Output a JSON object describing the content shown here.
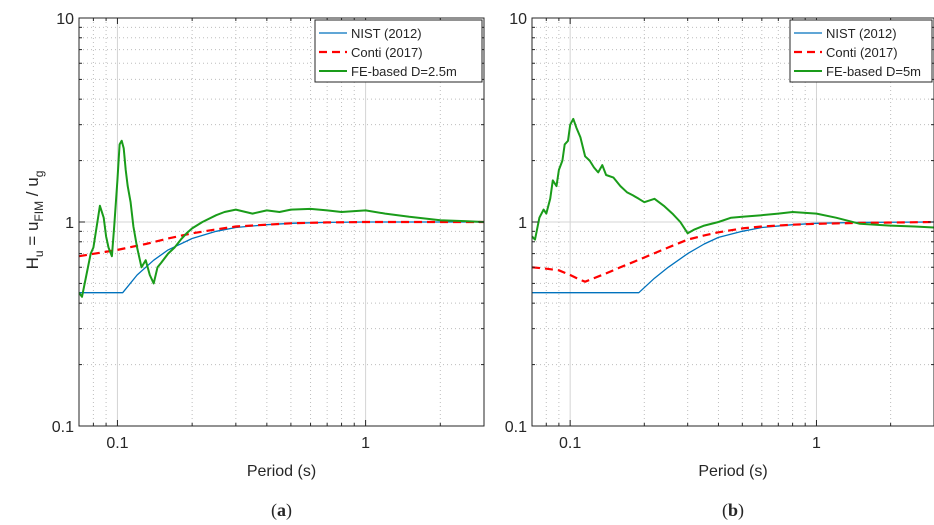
{
  "chart_data": [
    {
      "type": "line",
      "panel_label": "(a)",
      "xlabel": "Period (s)",
      "ylabel": "H_u = u_FIM / u_g",
      "xscale": "log",
      "yscale": "log",
      "xlim": [
        0.07,
        3.0
      ],
      "ylim": [
        0.1,
        10
      ],
      "x_tick_labels": [
        "0.1",
        "1"
      ],
      "y_tick_labels": [
        "0.1",
        "1",
        "10"
      ],
      "grid": true,
      "legend_position": "top-right",
      "series": [
        {
          "name": "NIST (2012)",
          "color": "#0072bd",
          "style": "solid",
          "points": [
            [
              0.07,
              0.45
            ],
            [
              0.105,
              0.45
            ],
            [
              0.12,
              0.55
            ],
            [
              0.14,
              0.65
            ],
            [
              0.16,
              0.73
            ],
            [
              0.2,
              0.83
            ],
            [
              0.25,
              0.9
            ],
            [
              0.3,
              0.94
            ],
            [
              0.4,
              0.97
            ],
            [
              0.5,
              0.985
            ],
            [
              0.7,
              0.995
            ],
            [
              1.0,
              1.0
            ],
            [
              3.0,
              1.0
            ]
          ]
        },
        {
          "name": "Conti (2017)",
          "color": "#ff0000",
          "style": "dashed",
          "points": [
            [
              0.07,
              0.68
            ],
            [
              0.1,
              0.73
            ],
            [
              0.13,
              0.78
            ],
            [
              0.16,
              0.83
            ],
            [
              0.2,
              0.88
            ],
            [
              0.25,
              0.92
            ],
            [
              0.3,
              0.95
            ],
            [
              0.4,
              0.97
            ],
            [
              0.5,
              0.985
            ],
            [
              0.7,
              0.995
            ],
            [
              1.0,
              1.0
            ],
            [
              3.0,
              1.0
            ]
          ]
        },
        {
          "name": "FE-based D=2.5m",
          "color": "#1a9c1a",
          "style": "solid",
          "points": [
            [
              0.07,
              0.45
            ],
            [
              0.072,
              0.43
            ],
            [
              0.075,
              0.55
            ],
            [
              0.078,
              0.7
            ],
            [
              0.08,
              0.75
            ],
            [
              0.083,
              1.0
            ],
            [
              0.085,
              1.2
            ],
            [
              0.088,
              1.05
            ],
            [
              0.09,
              0.85
            ],
            [
              0.092,
              0.75
            ],
            [
              0.095,
              0.68
            ],
            [
              0.097,
              0.95
            ],
            [
              0.1,
              1.6
            ],
            [
              0.102,
              2.4
            ],
            [
              0.104,
              2.5
            ],
            [
              0.106,
              2.3
            ],
            [
              0.108,
              1.8
            ],
            [
              0.11,
              1.5
            ],
            [
              0.113,
              1.25
            ],
            [
              0.116,
              0.95
            ],
            [
              0.12,
              0.75
            ],
            [
              0.125,
              0.6
            ],
            [
              0.13,
              0.65
            ],
            [
              0.135,
              0.55
            ],
            [
              0.14,
              0.5
            ],
            [
              0.145,
              0.6
            ],
            [
              0.15,
              0.63
            ],
            [
              0.16,
              0.7
            ],
            [
              0.17,
              0.75
            ],
            [
              0.18,
              0.82
            ],
            [
              0.19,
              0.88
            ],
            [
              0.2,
              0.93
            ],
            [
              0.22,
              1.0
            ],
            [
              0.25,
              1.08
            ],
            [
              0.27,
              1.12
            ],
            [
              0.3,
              1.15
            ],
            [
              0.35,
              1.1
            ],
            [
              0.4,
              1.14
            ],
            [
              0.45,
              1.12
            ],
            [
              0.5,
              1.15
            ],
            [
              0.6,
              1.16
            ],
            [
              0.7,
              1.14
            ],
            [
              0.8,
              1.12
            ],
            [
              1.0,
              1.14
            ],
            [
              1.2,
              1.1
            ],
            [
              1.5,
              1.06
            ],
            [
              2.0,
              1.02
            ],
            [
              2.5,
              1.01
            ],
            [
              3.0,
              1.0
            ]
          ]
        }
      ]
    },
    {
      "type": "line",
      "panel_label": "(b)",
      "xlabel": "Period (s)",
      "ylabel": "",
      "xscale": "log",
      "yscale": "log",
      "xlim": [
        0.07,
        3.0
      ],
      "ylim": [
        0.1,
        10
      ],
      "x_tick_labels": [
        "0.1",
        "1"
      ],
      "y_tick_labels": [
        "0.1",
        "1",
        "10"
      ],
      "grid": true,
      "legend_position": "top-right",
      "series": [
        {
          "name": "NIST (2012)",
          "color": "#0072bd",
          "style": "solid",
          "points": [
            [
              0.07,
              0.45
            ],
            [
              0.19,
              0.45
            ],
            [
              0.22,
              0.53
            ],
            [
              0.25,
              0.6
            ],
            [
              0.3,
              0.7
            ],
            [
              0.35,
              0.78
            ],
            [
              0.4,
              0.84
            ],
            [
              0.5,
              0.9
            ],
            [
              0.6,
              0.94
            ],
            [
              0.8,
              0.97
            ],
            [
              1.0,
              0.985
            ],
            [
              1.5,
              0.995
            ],
            [
              3.0,
              1.0
            ]
          ]
        },
        {
          "name": "Conti (2017)",
          "color": "#ff0000",
          "style": "dashed",
          "points": [
            [
              0.07,
              0.6
            ],
            [
              0.08,
              0.59
            ],
            [
              0.09,
              0.58
            ],
            [
              0.1,
              0.55
            ],
            [
              0.11,
              0.52
            ],
            [
              0.115,
              0.51
            ],
            [
              0.12,
              0.52
            ],
            [
              0.14,
              0.56
            ],
            [
              0.16,
              0.6
            ],
            [
              0.2,
              0.67
            ],
            [
              0.25,
              0.75
            ],
            [
              0.3,
              0.82
            ],
            [
              0.35,
              0.86
            ],
            [
              0.4,
              0.89
            ],
            [
              0.5,
              0.93
            ],
            [
              0.6,
              0.95
            ],
            [
              0.8,
              0.97
            ],
            [
              1.0,
              0.98
            ],
            [
              1.5,
              0.99
            ],
            [
              3.0,
              1.0
            ]
          ]
        },
        {
          "name": "FE-based D=5m",
          "color": "#1a9c1a",
          "style": "solid",
          "points": [
            [
              0.07,
              0.85
            ],
            [
              0.072,
              0.82
            ],
            [
              0.075,
              1.05
            ],
            [
              0.078,
              1.15
            ],
            [
              0.08,
              1.1
            ],
            [
              0.083,
              1.3
            ],
            [
              0.085,
              1.6
            ],
            [
              0.088,
              1.5
            ],
            [
              0.09,
              1.8
            ],
            [
              0.093,
              2.0
            ],
            [
              0.095,
              2.4
            ],
            [
              0.098,
              2.5
            ],
            [
              0.1,
              3.0
            ],
            [
              0.103,
              3.2
            ],
            [
              0.106,
              2.9
            ],
            [
              0.11,
              2.6
            ],
            [
              0.115,
              2.1
            ],
            [
              0.12,
              2.0
            ],
            [
              0.125,
              1.85
            ],
            [
              0.13,
              1.75
            ],
            [
              0.135,
              1.9
            ],
            [
              0.14,
              1.7
            ],
            [
              0.15,
              1.65
            ],
            [
              0.16,
              1.5
            ],
            [
              0.17,
              1.4
            ],
            [
              0.18,
              1.35
            ],
            [
              0.19,
              1.3
            ],
            [
              0.2,
              1.25
            ],
            [
              0.22,
              1.3
            ],
            [
              0.24,
              1.2
            ],
            [
              0.26,
              1.1
            ],
            [
              0.28,
              1.0
            ],
            [
              0.3,
              0.88
            ],
            [
              0.32,
              0.92
            ],
            [
              0.35,
              0.96
            ],
            [
              0.4,
              1.0
            ],
            [
              0.45,
              1.05
            ],
            [
              0.5,
              1.06
            ],
            [
              0.6,
              1.08
            ],
            [
              0.7,
              1.1
            ],
            [
              0.8,
              1.12
            ],
            [
              1.0,
              1.1
            ],
            [
              1.2,
              1.05
            ],
            [
              1.5,
              0.98
            ],
            [
              2.0,
              0.96
            ],
            [
              2.5,
              0.95
            ],
            [
              3.0,
              0.94
            ]
          ]
        }
      ]
    }
  ]
}
